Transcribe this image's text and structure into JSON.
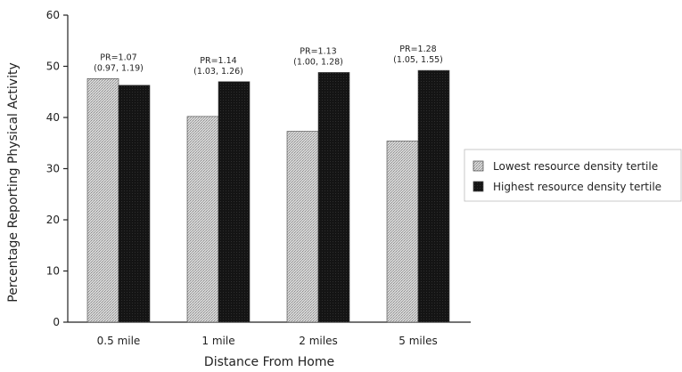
{
  "chart_data": {
    "type": "bar",
    "categories": [
      "0.5 mile",
      "1 mile",
      "2 miles",
      "5 miles"
    ],
    "series": [
      {
        "name": "Lowest resource density tertile",
        "values": [
          47.6,
          40.2,
          37.3,
          35.4
        ],
        "color": "#c9c9c9"
      },
      {
        "name": "Highest resource density tertile",
        "values": [
          46.3,
          47.0,
          48.8,
          49.2
        ],
        "color": "#151515"
      }
    ],
    "annotations": [
      {
        "pr": "PR=1.07",
        "ci": "(0.97, 1.19)"
      },
      {
        "pr": "PR=1.14",
        "ci": "(1.03, 1.26)"
      },
      {
        "pr": "PR=1.13",
        "ci": "(1.00, 1.28)"
      },
      {
        "pr": "PR=1.28",
        "ci": "(1.05, 1.55)"
      }
    ],
    "xlabel": "Distance From Home",
    "ylabel": "Percentage Reporting Physical Activity",
    "ylim": [
      0,
      60
    ],
    "yticks": [
      0,
      10,
      20,
      30,
      40,
      50,
      60
    ],
    "grid": false,
    "legend_position": "right"
  }
}
